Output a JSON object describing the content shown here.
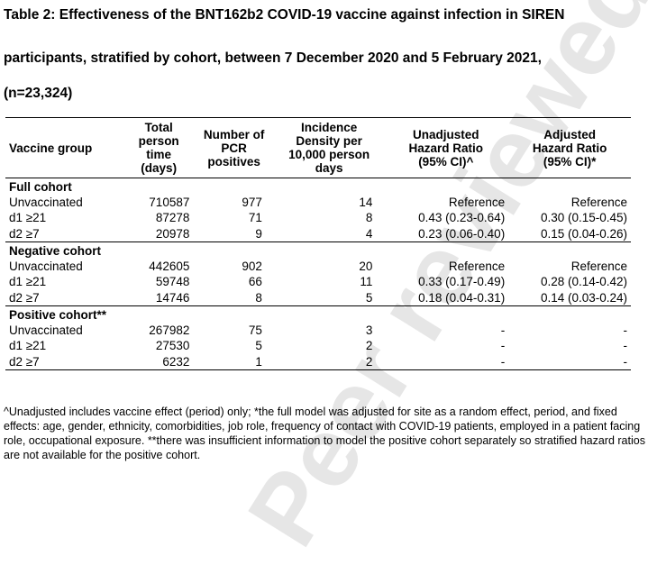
{
  "title_lines": [
    "Table 2: Effectiveness of the BNT162b2 COVID-19 vaccine against infection in SIREN",
    "participants, stratified by cohort, between 7 December 2020 and 5 February 2021,",
    "(n=23,324)"
  ],
  "headers": [
    "Vaccine group",
    "Total person time (days)",
    "Number of PCR positives",
    "Incidence Density per 10,000 person days",
    "Unadjusted Hazard Ratio (95% CI)^",
    "Adjusted Hazard Ratio (95% CI)*"
  ],
  "cohorts": [
    {
      "name": "Full cohort",
      "rows": [
        [
          "Unvaccinated",
          "710587",
          "977",
          "14",
          "Reference",
          "Reference"
        ],
        [
          "d1 ≥21",
          "87278",
          "71",
          "8",
          "0.43 (0.23-0.64)",
          "0.30 (0.15-0.45)"
        ],
        [
          "d2 ≥7",
          "20978",
          "9",
          "4",
          "0.23 (0.06-0.40)",
          "0.15 (0.04-0.26)"
        ]
      ]
    },
    {
      "name": "Negative cohort",
      "rows": [
        [
          "Unvaccinated",
          "442605",
          "902",
          "20",
          "Reference",
          "Reference"
        ],
        [
          "d1 ≥21",
          "59748",
          "66",
          "11",
          "0.33 (0.17-0.49)",
          "0.28 (0.14-0.42)"
        ],
        [
          "d2 ≥7",
          "14746",
          "8",
          "5",
          "0.18 (0.04-0.31)",
          "0.14 (0.03-0.24)"
        ]
      ]
    },
    {
      "name": "Positive cohort**",
      "rows": [
        [
          "Unvaccinated",
          "267982",
          "75",
          "3",
          "-",
          "-"
        ],
        [
          "d1 ≥21",
          "27530",
          "5",
          "2",
          "-",
          "-"
        ],
        [
          "d2 ≥7",
          "6232",
          "1",
          "2",
          "-",
          "-"
        ]
      ]
    }
  ],
  "footnote": "^Unadjusted includes vaccine effect (period) only; *the full model was adjusted for site as a random effect, period, and fixed effects: age, gender, ethnicity, comorbidities, job role, frequency of contact with COVID-19 patients, employed in a patient facing role, occupational exposure. **there was insufficient information to model the positive cohort separately so stratified hazard ratios are not available for the positive cohort.",
  "watermark": "Peer reviewed",
  "colors": {
    "text": "#000000",
    "watermark": "#e6e6e6",
    "background": "#ffffff"
  }
}
